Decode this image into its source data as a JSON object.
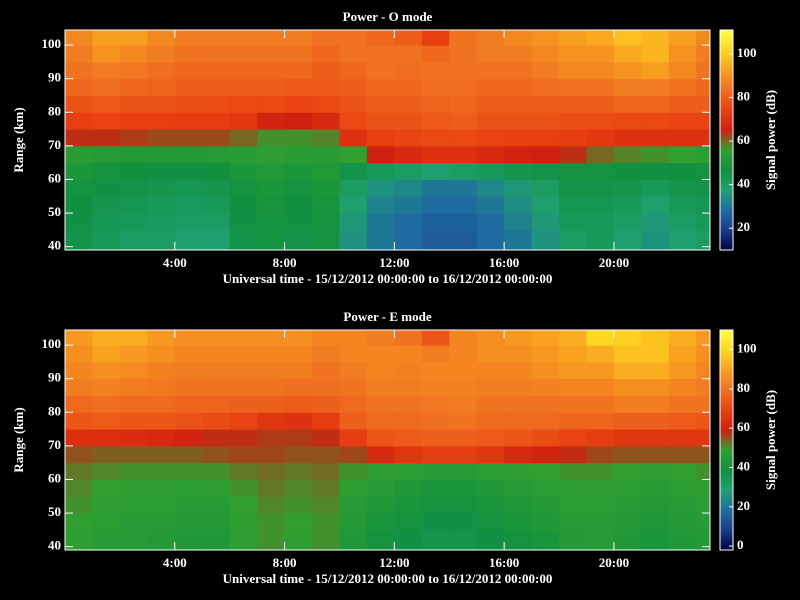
{
  "chart_data": [
    {
      "type": "heatmap",
      "title": "Power - O mode",
      "xlabel": "Universal time - 15/12/2012 00:00:00 to 16/12/2012 00:00:00",
      "ylabel": "Range (km)",
      "colorbar_label": "Signal power (dB)",
      "xbins": [
        0,
        1,
        2,
        3,
        4,
        5,
        6,
        7,
        8,
        9,
        10,
        11,
        12,
        13,
        14,
        15,
        16,
        17,
        18,
        19,
        20,
        21,
        22,
        23,
        23.5
      ],
      "ybins": [
        39,
        45,
        50,
        55,
        60,
        65,
        70,
        75,
        80,
        85,
        90,
        95,
        100,
        104.5
      ],
      "xlim": [
        0,
        23.5
      ],
      "ylim": [
        39,
        104.5
      ],
      "xticks": [
        {
          "value": 4,
          "label": "4:00"
        },
        {
          "value": 8,
          "label": "8:00"
        },
        {
          "value": 12,
          "label": "12:00"
        },
        {
          "value": 16,
          "label": "16:00"
        },
        {
          "value": 20,
          "label": "20:00"
        }
      ],
      "yticks": [
        40,
        50,
        60,
        70,
        80,
        90,
        100
      ],
      "clim": [
        10,
        111
      ],
      "cticks": [
        20,
        40,
        60,
        80,
        100
      ],
      "colorscale": [
        "#000040",
        "#1a3c8c",
        "#1e6ea0",
        "#20a070",
        "#109040",
        "#30a030",
        "#d02010",
        "#e84010",
        "#f07020",
        "#f8a020",
        "#ffd820",
        "#ffff40"
      ],
      "z": [
        [
          45,
          42,
          40,
          40,
          38,
          38,
          45,
          48,
          45,
          48,
          35,
          30,
          28,
          25,
          25,
          28,
          30,
          35,
          40,
          42,
          38,
          35,
          38,
          40
        ],
        [
          46,
          43,
          42,
          41,
          40,
          40,
          46,
          48,
          46,
          48,
          36,
          30,
          28,
          26,
          26,
          28,
          32,
          36,
          42,
          42,
          40,
          36,
          40,
          42
        ],
        [
          47,
          44,
          43,
          42,
          41,
          42,
          47,
          49,
          47,
          49,
          38,
          32,
          30,
          28,
          28,
          30,
          34,
          38,
          43,
          43,
          42,
          38,
          42,
          43
        ],
        [
          48,
          46,
          45,
          44,
          43,
          44,
          48,
          50,
          48,
          50,
          40,
          35,
          33,
          30,
          30,
          33,
          36,
          40,
          45,
          45,
          44,
          42,
          44,
          45
        ],
        [
          50,
          48,
          47,
          46,
          46,
          47,
          50,
          52,
          50,
          52,
          45,
          42,
          40,
          38,
          40,
          42,
          44,
          45,
          48,
          48,
          47,
          46,
          47,
          48
        ],
        [
          54,
          53,
          52,
          52,
          52,
          53,
          54,
          55,
          54,
          54,
          56,
          65,
          68,
          70,
          70,
          68,
          66,
          65,
          64,
          60,
          58,
          57,
          56,
          55
        ],
        [
          64,
          64,
          63,
          62,
          62,
          62,
          60,
          57,
          57,
          58,
          70,
          74,
          75,
          76,
          76,
          75,
          74,
          74,
          73,
          72,
          70,
          70,
          70,
          70
        ],
        [
          74,
          75,
          74,
          74,
          73,
          73,
          72,
          66,
          65,
          68,
          76,
          78,
          78,
          79,
          80,
          78,
          78,
          78,
          77,
          77,
          76,
          76,
          75,
          75
        ],
        [
          78,
          79,
          78,
          78,
          77,
          77,
          76,
          76,
          75,
          76,
          78,
          80,
          80,
          81,
          82,
          80,
          80,
          80,
          80,
          80,
          82,
          82,
          80,
          80
        ],
        [
          82,
          83,
          82,
          81,
          80,
          80,
          80,
          80,
          79,
          79,
          80,
          82,
          82,
          83,
          83,
          82,
          82,
          83,
          84,
          84,
          86,
          86,
          84,
          82
        ],
        [
          84,
          86,
          85,
          83,
          82,
          82,
          82,
          82,
          82,
          80,
          82,
          84,
          83,
          84,
          84,
          84,
          84,
          86,
          88,
          88,
          90,
          92,
          88,
          84
        ],
        [
          86,
          90,
          88,
          86,
          84,
          84,
          84,
          84,
          84,
          82,
          84,
          84,
          84,
          82,
          84,
          86,
          86,
          88,
          90,
          90,
          94,
          96,
          90,
          86
        ],
        [
          88,
          92,
          92,
          88,
          86,
          86,
          86,
          86,
          86,
          84,
          84,
          82,
          80,
          74,
          84,
          86,
          88,
          90,
          92,
          94,
          98,
          96,
          92,
          88
        ]
      ]
    },
    {
      "type": "heatmap",
      "title": "Power - E mode",
      "xlabel": "Universal time - 15/12/2012 00:00:00 to 16/12/2012 00:00:00",
      "ylabel": "Range (km)",
      "colorbar_label": "Signal power (dB)",
      "xbins": [
        0,
        1,
        2,
        3,
        4,
        5,
        6,
        7,
        8,
        9,
        10,
        11,
        12,
        13,
        14,
        15,
        16,
        17,
        18,
        19,
        20,
        21,
        22,
        23,
        23.5
      ],
      "ybins": [
        39,
        45,
        50,
        55,
        60,
        65,
        70,
        75,
        80,
        85,
        90,
        95,
        100,
        104.5
      ],
      "xlim": [
        0,
        23.5
      ],
      "ylim": [
        39,
        104.5
      ],
      "xticks": [
        {
          "value": 4,
          "label": "4:00"
        },
        {
          "value": 8,
          "label": "8:00"
        },
        {
          "value": 12,
          "label": "12:00"
        },
        {
          "value": 16,
          "label": "16:00"
        },
        {
          "value": 20,
          "label": "20:00"
        }
      ],
      "yticks": [
        40,
        50,
        60,
        70,
        80,
        90,
        100
      ],
      "clim": [
        -2,
        110
      ],
      "cticks": [
        0,
        20,
        40,
        60,
        80,
        100
      ],
      "colorscale": [
        "#000040",
        "#1a3c8c",
        "#1e6ea0",
        "#20a070",
        "#109040",
        "#30a030",
        "#d02010",
        "#e84010",
        "#f07020",
        "#f8a020",
        "#ffd820",
        "#ffff40"
      ],
      "z": [
        [
          48,
          46,
          46,
          45,
          44,
          44,
          48,
          50,
          48,
          50,
          44,
          40,
          38,
          36,
          36,
          38,
          40,
          42,
          45,
          46,
          44,
          42,
          44,
          45
        ],
        [
          49,
          47,
          46,
          46,
          45,
          45,
          48,
          50,
          49,
          50,
          45,
          42,
          40,
          38,
          38,
          40,
          42,
          44,
          46,
          46,
          45,
          43,
          45,
          46
        ],
        [
          50,
          48,
          47,
          47,
          46,
          46,
          49,
          51,
          50,
          51,
          46,
          44,
          42,
          40,
          40,
          42,
          44,
          45,
          47,
          47,
          46,
          45,
          46,
          47
        ],
        [
          51,
          49,
          48,
          48,
          47,
          48,
          50,
          52,
          51,
          52,
          48,
          46,
          44,
          42,
          42,
          44,
          46,
          47,
          48,
          48,
          47,
          46,
          47,
          48
        ],
        [
          52,
          51,
          50,
          50,
          50,
          50,
          52,
          53,
          52,
          53,
          50,
          48,
          47,
          46,
          46,
          47,
          48,
          49,
          50,
          50,
          49,
          48,
          49,
          50
        ],
        [
          55,
          54,
          54,
          54,
          54,
          55,
          56,
          56,
          55,
          55,
          56,
          62,
          66,
          68,
          68,
          66,
          62,
          60,
          58,
          56,
          55,
          55,
          55,
          55
        ],
        [
          64,
          64,
          63,
          62,
          60,
          58,
          58,
          57,
          57,
          58,
          68,
          74,
          75,
          76,
          76,
          75,
          74,
          72,
          70,
          68,
          66,
          66,
          66,
          66
        ],
        [
          74,
          75,
          74,
          74,
          73,
          72,
          70,
          66,
          65,
          68,
          76,
          78,
          78,
          79,
          80,
          78,
          78,
          78,
          77,
          77,
          76,
          76,
          75,
          74
        ],
        [
          78,
          79,
          78,
          78,
          77,
          77,
          76,
          76,
          75,
          76,
          78,
          80,
          80,
          81,
          82,
          80,
          80,
          80,
          80,
          80,
          82,
          82,
          80,
          80
        ],
        [
          82,
          83,
          82,
          81,
          80,
          80,
          80,
          80,
          79,
          79,
          80,
          82,
          82,
          83,
          83,
          82,
          82,
          83,
          84,
          84,
          86,
          86,
          84,
          82
        ],
        [
          84,
          86,
          85,
          83,
          82,
          82,
          82,
          82,
          82,
          80,
          82,
          84,
          83,
          84,
          84,
          84,
          84,
          86,
          88,
          88,
          92,
          92,
          88,
          84
        ],
        [
          86,
          90,
          88,
          86,
          84,
          84,
          84,
          84,
          84,
          82,
          84,
          84,
          84,
          82,
          84,
          86,
          86,
          88,
          90,
          92,
          96,
          96,
          90,
          86
        ],
        [
          88,
          92,
          92,
          88,
          86,
          86,
          86,
          86,
          86,
          84,
          84,
          82,
          80,
          74,
          84,
          86,
          88,
          90,
          92,
          100,
          98,
          96,
          92,
          88
        ]
      ]
    }
  ]
}
